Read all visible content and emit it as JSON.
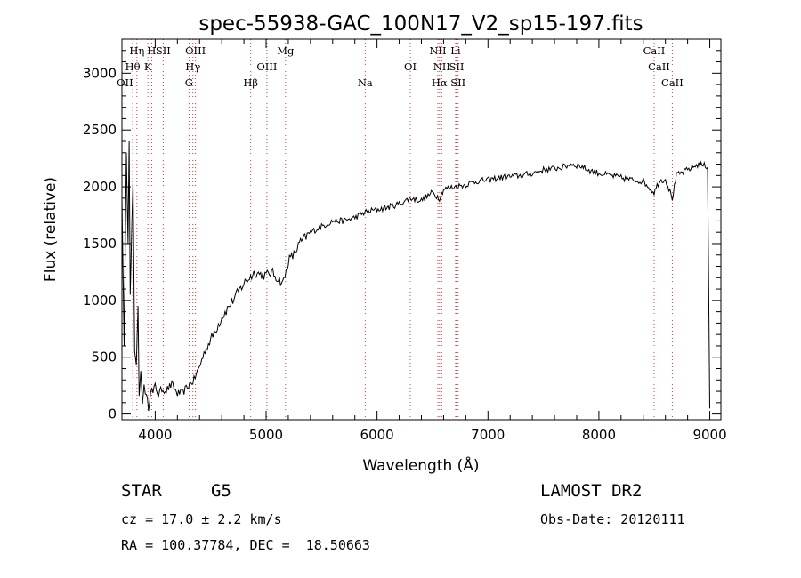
{
  "chart_data": {
    "type": "line",
    "title": "spec-55938-GAC_100N17_V2_sp15-197.fits",
    "xlabel": "Wavelength (Å)",
    "ylabel": "Flux (relative)",
    "xlim": [
      3700,
      9100
    ],
    "ylim": [
      -50,
      3300
    ],
    "xticks": [
      4000,
      5000,
      6000,
      7000,
      8000,
      9000
    ],
    "yticks": [
      0,
      500,
      1000,
      1500,
      2000,
      2500,
      3000
    ],
    "series": [
      {
        "x": [
          3700,
          3720,
          3740,
          3755,
          3765,
          3775,
          3790,
          3800,
          3815,
          3830,
          3845,
          3855,
          3870,
          3885,
          3900,
          3920,
          3940,
          3960,
          3980,
          4000,
          4030,
          4060,
          4100,
          4150,
          4200,
          4250,
          4300,
          4350,
          4400,
          4450,
          4500,
          4600,
          4700,
          4800,
          4850,
          4900,
          4950,
          5000,
          5050,
          5100,
          5150,
          5180,
          5200,
          5250,
          5300,
          5400,
          5500,
          5600,
          5700,
          5800,
          5900,
          6000,
          6100,
          6200,
          6300,
          6400,
          6500,
          6563,
          6600,
          6700,
          6800,
          6900,
          7000,
          7100,
          7200,
          7300,
          7400,
          7500,
          7600,
          7700,
          7750,
          7800,
          7850,
          7900,
          8000,
          8100,
          8200,
          8300,
          8400,
          8498,
          8542,
          8600,
          8662,
          8700,
          8800,
          8900,
          8980,
          9000
        ],
        "y": [
          1900,
          600,
          2300,
          1500,
          2400,
          1050,
          1700,
          2050,
          550,
          430,
          950,
          160,
          380,
          90,
          260,
          150,
          60,
          230,
          180,
          250,
          170,
          220,
          210,
          260,
          180,
          190,
          250,
          300,
          420,
          560,
          650,
          850,
          1000,
          1150,
          1200,
          1250,
          1230,
          1220,
          1250,
          1200,
          1150,
          1250,
          1350,
          1400,
          1500,
          1600,
          1650,
          1700,
          1700,
          1730,
          1780,
          1800,
          1820,
          1850,
          1900,
          1880,
          1950,
          1900,
          1980,
          2000,
          2020,
          2050,
          2060,
          2080,
          2090,
          2100,
          2120,
          2150,
          2160,
          2180,
          2200,
          2190,
          2180,
          2150,
          2120,
          2100,
          2080,
          2060,
          2050,
          1950,
          2050,
          2070,
          1900,
          2100,
          2150,
          2200,
          2180,
          50
        ]
      }
    ],
    "spectral_lines": [
      {
        "name": "Hη",
        "wavelength": 3835
      },
      {
        "name": "Hθ",
        "wavelength": 3797
      },
      {
        "name": "OII",
        "wavelength": 3727
      },
      {
        "name": "H",
        "wavelength": 3968
      },
      {
        "name": "K",
        "wavelength": 3934
      },
      {
        "name": "SII",
        "wavelength": 4072
      },
      {
        "name": "OIII",
        "wavelength": 4363
      },
      {
        "name": "Hγ",
        "wavelength": 4340
      },
      {
        "name": "G",
        "wavelength": 4305
      },
      {
        "name": "Hβ",
        "wavelength": 4861
      },
      {
        "name": "OIII",
        "wavelength": 5007
      },
      {
        "name": "Mg",
        "wavelength": 5175
      },
      {
        "name": "Na",
        "wavelength": 5893
      },
      {
        "name": "OI",
        "wavelength": 6300
      },
      {
        "name": "NII",
        "wavelength": 6548
      },
      {
        "name": "NII",
        "wavelength": 6583
      },
      {
        "name": "Hα",
        "wavelength": 6563
      },
      {
        "name": "Li",
        "wavelength": 6708
      },
      {
        "name": "SII",
        "wavelength": 6717
      },
      {
        "name": "SII",
        "wavelength": 6731
      },
      {
        "name": "CaII",
        "wavelength": 8498
      },
      {
        "name": "CaII",
        "wavelength": 8542
      },
      {
        "name": "CaII",
        "wavelength": 8662
      }
    ]
  },
  "info": {
    "class_label": "STAR",
    "subclass_label": "G5",
    "survey": "LAMOST DR2",
    "redshift": "cz = 17.0 ± 2.2 km/s",
    "obs_date": "Obs-Date: 20120111",
    "coords": "RA = 100.37784, DEC =  18.50663"
  }
}
